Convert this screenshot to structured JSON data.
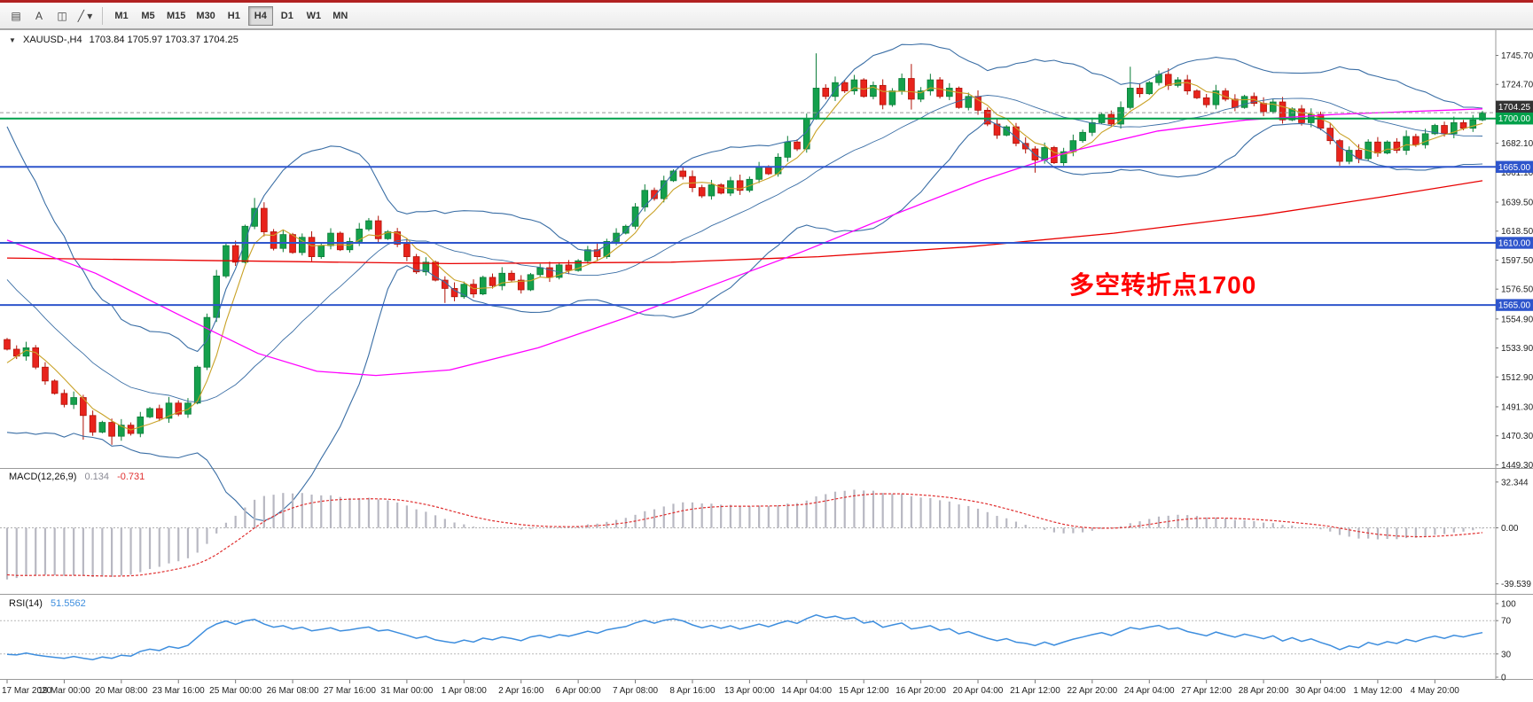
{
  "toolbar": {
    "icons": [
      {
        "name": "chart-windows-icon",
        "glyph": "▤"
      },
      {
        "name": "text-annotation-icon",
        "glyph": "A"
      },
      {
        "name": "frame-tool-icon",
        "glyph": "◫"
      },
      {
        "name": "drawing-tools-dropdown-icon",
        "glyph": "╱ ▾"
      }
    ],
    "timeframes": [
      "M1",
      "M5",
      "M15",
      "M30",
      "H1",
      "H4",
      "D1",
      "W1",
      "MN"
    ],
    "active_timeframe": "H4"
  },
  "chart": {
    "symbol_caret": "▼",
    "symbol_label": "XAUUSD-,H4",
    "ohlc_values": "1703.84 1705.97 1703.37 1704.25",
    "annotation": {
      "text": "多空转折点1700",
      "color": "#ff0000"
    }
  },
  "macd": {
    "label": "MACD(12,26,9)",
    "main_value": "0.134",
    "signal_value": "-0.731",
    "axis_labels": [
      "32.344",
      "0.00",
      "-39.539"
    ]
  },
  "rsi": {
    "label": "RSI(14)",
    "value": "51.5562",
    "axis_labels": [
      "100",
      "70",
      "30",
      "0"
    ],
    "levels": [
      70,
      30
    ]
  },
  "chart_data": {
    "type": "candlestick",
    "symbol": "XAUUSD",
    "timeframe": "H4",
    "price_axis_ticks": [
      "1745.70",
      "1724.70",
      "1703.70",
      "1682.10",
      "1661.10",
      "1639.50",
      "1618.50",
      "1597.50",
      "1576.50",
      "1554.90",
      "1533.90",
      "1512.90",
      "1491.30",
      "1470.30",
      "1449.30"
    ],
    "time_labels": [
      "17 Mar 2020",
      "19 Mar 00:00",
      "20 Mar 08:00",
      "23 Mar 16:00",
      "25 Mar 00:00",
      "26 Mar 08:00",
      "27 Mar 16:00",
      "31 Mar 00:00",
      "1 Apr 08:00",
      "2 Apr 16:00",
      "6 Apr 00:00",
      "7 Apr 08:00",
      "8 Apr 16:00",
      "13 Apr 00:00",
      "14 Apr 04:00",
      "15 Apr 12:00",
      "16 Apr 20:00",
      "20 Apr 04:00",
      "21 Apr 12:00",
      "22 Apr 20:00",
      "24 Apr 04:00",
      "27 Apr 12:00",
      "28 Apr 20:00",
      "30 Apr 04:00",
      "1 May 12:00",
      "4 May 20:00"
    ],
    "first_open": 1540,
    "pre_closes": [
      1672,
      1680,
      1665,
      1650,
      1658,
      1640,
      1620,
      1628,
      1600,
      1605,
      1580,
      1560,
      1572,
      1545,
      1520,
      1530,
      1505,
      1512,
      1528,
      1538
    ],
    "closes": [
      1533,
      1528,
      1534,
      1520,
      1510,
      1501,
      1493,
      1498,
      1485,
      1473,
      1480,
      1470,
      1478,
      1472,
      1484,
      1490,
      1483,
      1494,
      1486,
      1494,
      1520,
      1556,
      1586,
      1608,
      1596,
      1622,
      1635,
      1618,
      1606,
      1616,
      1603,
      1614,
      1600,
      1608,
      1617,
      1605,
      1611,
      1620,
      1626,
      1613,
      1618,
      1609,
      1600,
      1589,
      1596,
      1583,
      1577,
      1571,
      1580,
      1573,
      1585,
      1579,
      1588,
      1583,
      1576,
      1587,
      1592,
      1585,
      1594,
      1590,
      1597,
      1605,
      1600,
      1611,
      1617,
      1622,
      1636,
      1648,
      1642,
      1655,
      1662,
      1658,
      1650,
      1644,
      1652,
      1646,
      1655,
      1648,
      1656,
      1665,
      1660,
      1672,
      1683,
      1678,
      1700,
      1722,
      1716,
      1726,
      1720,
      1728,
      1716,
      1724,
      1710,
      1720,
      1729,
      1714,
      1720,
      1728,
      1716,
      1722,
      1708,
      1716,
      1706,
      1696,
      1688,
      1694,
      1682,
      1678,
      1670,
      1679,
      1668,
      1676,
      1684,
      1690,
      1697,
      1703,
      1696,
      1708,
      1722,
      1718,
      1726,
      1732,
      1724,
      1728,
      1720,
      1715,
      1710,
      1720,
      1714,
      1708,
      1716,
      1711,
      1705,
      1712,
      1699,
      1707,
      1697,
      1703,
      1693,
      1684,
      1669,
      1677,
      1671,
      1683,
      1675,
      1683,
      1677,
      1687,
      1681,
      1689,
      1695,
      1689,
      1697,
      1693,
      1699,
      1704.25
    ],
    "spike_highs": {
      "26": 1642.5,
      "85": 1747.2,
      "95": 1739.5,
      "118": 1737.5
    },
    "spike_lows": {
      "8": 1467.5,
      "11": 1463.8,
      "46": 1566.5,
      "95": 1706.5,
      "108": 1660.8,
      "140": 1665.8
    },
    "hlines": [
      {
        "price": 1700,
        "color": "#00a04a",
        "width": 2,
        "label": "1700.00",
        "label_bg": "#00a04a"
      },
      {
        "price": 1665,
        "color": "#2e55cc",
        "width": 2,
        "label": "1665.00",
        "label_bg": "#2e55cc"
      },
      {
        "price": 1610,
        "color": "#2e55cc",
        "width": 2,
        "label": "1610.00",
        "label_bg": "#2e55cc"
      },
      {
        "price": 1565,
        "color": "#2e55cc",
        "width": 2,
        "label": "1565.00",
        "label_bg": "#2e55cc"
      }
    ],
    "bid_line": {
      "price": 1704.25,
      "label": "1704.25",
      "label_bg": "#333333",
      "color": "#999999"
    },
    "ma_red_anchors": [
      [
        0,
        1599
      ],
      [
        0.15,
        1597
      ],
      [
        0.3,
        1595
      ],
      [
        0.45,
        1596
      ],
      [
        0.55,
        1600
      ],
      [
        0.65,
        1607
      ],
      [
        0.75,
        1617
      ],
      [
        0.85,
        1630
      ],
      [
        0.93,
        1643
      ],
      [
        1,
        1655
      ]
    ],
    "ma_magenta_anchors": [
      [
        0,
        1612
      ],
      [
        0.06,
        1588
      ],
      [
        0.12,
        1556
      ],
      [
        0.17,
        1530
      ],
      [
        0.21,
        1517
      ],
      [
        0.25,
        1514
      ],
      [
        0.3,
        1518
      ],
      [
        0.36,
        1534
      ],
      [
        0.42,
        1556
      ],
      [
        0.48,
        1580
      ],
      [
        0.54,
        1604
      ],
      [
        0.6,
        1630
      ],
      [
        0.66,
        1655
      ],
      [
        0.72,
        1676
      ],
      [
        0.78,
        1691
      ],
      [
        0.84,
        1699
      ],
      [
        0.9,
        1703
      ],
      [
        0.95,
        1705
      ],
      [
        1,
        1707
      ]
    ],
    "colors": {
      "up": "#14a04c",
      "up_border": "#0b7c38",
      "down": "#e8231c",
      "down_border": "#b01208",
      "bands": "#3a6ea5",
      "ma_fast": "#c9a227",
      "ma_red": "#e80000",
      "ma_magenta": "#ff00ff",
      "macd_hist": "#b8b8c2",
      "macd_signal": "#e03030",
      "rsi": "#3e8ede"
    }
  }
}
